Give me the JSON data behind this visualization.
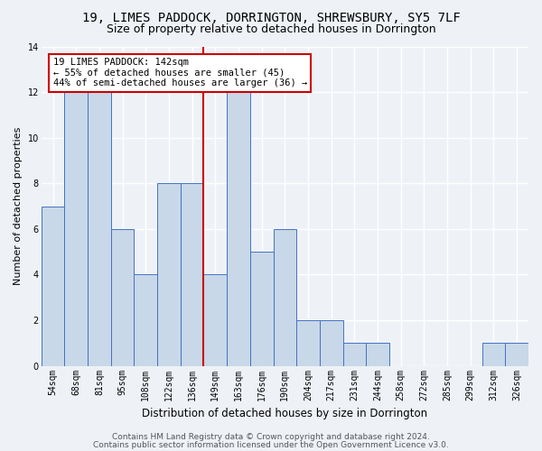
{
  "title1": "19, LIMES PADDOCK, DORRINGTON, SHREWSBURY, SY5 7LF",
  "title2": "Size of property relative to detached houses in Dorrington",
  "xlabel": "Distribution of detached houses by size in Dorrington",
  "ylabel": "Number of detached properties",
  "categories": [
    "54sqm",
    "68sqm",
    "81sqm",
    "95sqm",
    "108sqm",
    "122sqm",
    "136sqm",
    "149sqm",
    "163sqm",
    "176sqm",
    "190sqm",
    "204sqm",
    "217sqm",
    "231sqm",
    "244sqm",
    "258sqm",
    "272sqm",
    "285sqm",
    "299sqm",
    "312sqm",
    "326sqm"
  ],
  "values": [
    7,
    12,
    12,
    6,
    4,
    8,
    8,
    4,
    12,
    5,
    6,
    2,
    2,
    1,
    1,
    0,
    0,
    0,
    0,
    1,
    1
  ],
  "bar_color": "#c8d8e8",
  "bar_edge_color": "#4472c4",
  "vline_index": 7,
  "annotation_title": "19 LIMES PADDOCK: 142sqm",
  "annotation_line1": "← 55% of detached houses are smaller (45)",
  "annotation_line2": "44% of semi-detached houses are larger (36) →",
  "vline_color": "#cc0000",
  "annotation_box_color": "#ffffff",
  "annotation_box_edge_color": "#cc0000",
  "ylim": [
    0,
    14
  ],
  "yticks": [
    0,
    2,
    4,
    6,
    8,
    10,
    12,
    14
  ],
  "footer1": "Contains HM Land Registry data © Crown copyright and database right 2024.",
  "footer2": "Contains public sector information licensed under the Open Government Licence v3.0.",
  "background_color": "#eef2f7",
  "grid_color": "#ffffff",
  "title1_fontsize": 10,
  "title2_fontsize": 9,
  "xlabel_fontsize": 8.5,
  "ylabel_fontsize": 8,
  "tick_fontsize": 7,
  "footer_fontsize": 6.5,
  "annotation_fontsize": 7.5
}
